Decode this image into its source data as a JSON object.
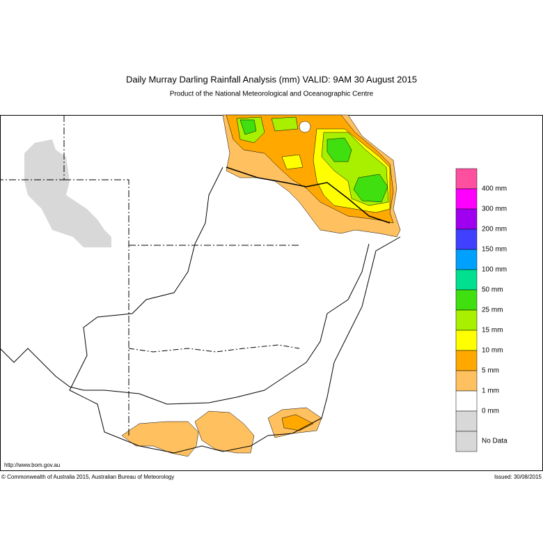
{
  "header": {
    "title": "Daily Murray Darling Rainfall Analysis (mm)  VALID: 9AM 30 August 2015",
    "subtitle": "Product of the National Meteorological and Oceanographic Centre"
  },
  "legend": {
    "items": [
      {
        "color": "#ff50a0",
        "label": null
      },
      {
        "color": "#ff00ff",
        "label": "400 mm"
      },
      {
        "color": "#a000f0",
        "label": "300 mm"
      },
      {
        "color": "#4040ff",
        "label": "200 mm"
      },
      {
        "color": "#00a0ff",
        "label": "150 mm"
      },
      {
        "color": "#00e090",
        "label": "100 mm"
      },
      {
        "color": "#40e010",
        "label": "50 mm"
      },
      {
        "color": "#a8f000",
        "label": "25 mm"
      },
      {
        "color": "#ffff00",
        "label": "15 mm"
      },
      {
        "color": "#ffa800",
        "label": "10 mm"
      },
      {
        "color": "#ffc060",
        "label": "5 mm"
      },
      {
        "color": "#ffffff",
        "label": "1 mm"
      },
      {
        "color": "#d8d8d8",
        "label": "0 mm"
      }
    ],
    "nodata": "No Data"
  },
  "footer": {
    "url": "http://www.bom.gov.au",
    "copyright": "© Commonwealth of Australia 2015, Australian Bureau of Meteorology",
    "issued": "Issued: 30/08/2015"
  }
}
